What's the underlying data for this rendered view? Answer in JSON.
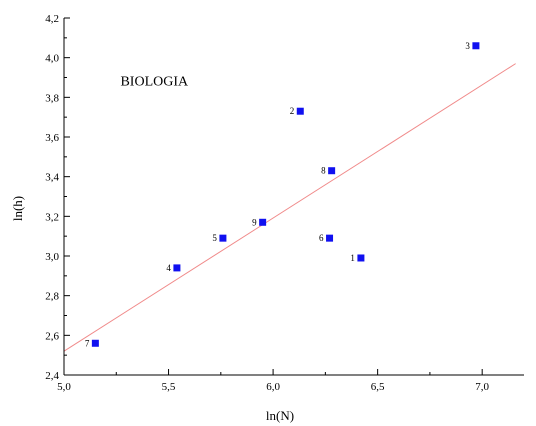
{
  "chart_data": {
    "type": "scatter",
    "annotation": "BIOLOGIA",
    "xlabel": "ln(N)",
    "ylabel": "ln(h)",
    "xlim": [
      5.0,
      7.2
    ],
    "ylim": [
      2.4,
      4.2
    ],
    "xticks": [
      "5,0",
      "5,5",
      "6,0",
      "6,5",
      "7,0"
    ],
    "yticks": [
      "2,4",
      "2,6",
      "2,8",
      "3,0",
      "3,2",
      "3,4",
      "3,6",
      "3,8",
      "4,0",
      "4,2"
    ],
    "points": [
      {
        "label": "1",
        "x": 6.42,
        "y": 2.99
      },
      {
        "label": "2",
        "x": 6.13,
        "y": 3.73
      },
      {
        "label": "3",
        "x": 6.97,
        "y": 4.06
      },
      {
        "label": "4",
        "x": 5.54,
        "y": 2.94
      },
      {
        "label": "5",
        "x": 5.76,
        "y": 3.09
      },
      {
        "label": "6",
        "x": 6.27,
        "y": 3.09
      },
      {
        "label": "7",
        "x": 5.15,
        "y": 2.56
      },
      {
        "label": "8",
        "x": 6.28,
        "y": 3.43
      },
      {
        "label": "9",
        "x": 5.95,
        "y": 3.17
      }
    ],
    "fit_line": {
      "x": [
        5.0,
        7.16
      ],
      "y": [
        2.52,
        3.97
      ]
    },
    "colors": {
      "marker": "#1010f0",
      "fit_line": "#f08a8a",
      "axis": "#000000"
    }
  }
}
